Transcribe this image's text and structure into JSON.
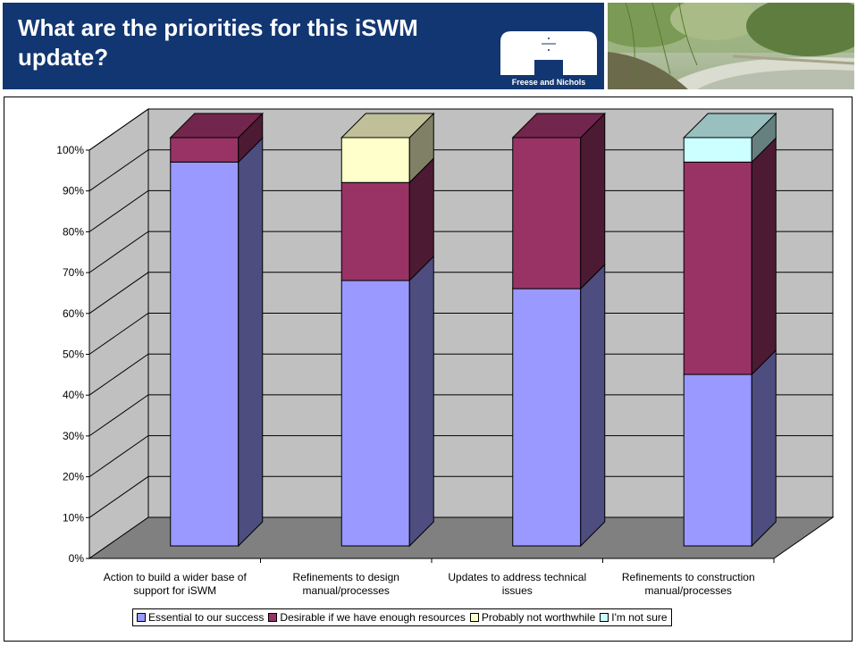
{
  "header": {
    "title": "What are the priorities for this iSWM update?",
    "logo_text": "Freese and Nichols",
    "brand_color": "#123671"
  },
  "chart_data": {
    "type": "bar",
    "stacked": true,
    "percent_stacked": true,
    "three_d": true,
    "title": "",
    "xlabel": "",
    "ylabel": "",
    "ylim": [
      0,
      100
    ],
    "yticks": [
      "0%",
      "10%",
      "20%",
      "30%",
      "40%",
      "50%",
      "60%",
      "70%",
      "80%",
      "90%",
      "100%"
    ],
    "grid": true,
    "legend_position": "bottom",
    "categories": [
      [
        "Action to build a wider base of",
        "support for iSWM"
      ],
      [
        "Refinements to design",
        "manual/processes"
      ],
      [
        "Updates to address technical",
        "issues"
      ],
      [
        "Refinements to construction",
        "manual/processes"
      ]
    ],
    "series": [
      {
        "name": "Essential to our success",
        "color": "#9999ff",
        "values": [
          94,
          65,
          63,
          42
        ]
      },
      {
        "name": "Desirable if we have enough resources",
        "color": "#993366",
        "values": [
          6,
          24,
          37,
          52
        ]
      },
      {
        "name": "Probably not worthwhile",
        "color": "#ffffcc",
        "values": [
          0,
          11,
          0,
          0
        ]
      },
      {
        "name": "I'm not sure",
        "color": "#ccffff",
        "values": [
          0,
          0,
          0,
          6
        ]
      }
    ]
  }
}
